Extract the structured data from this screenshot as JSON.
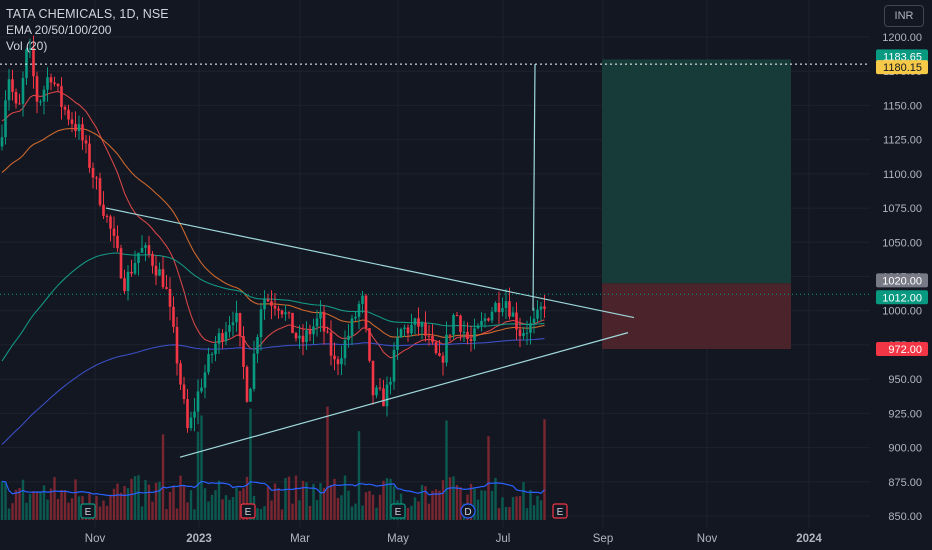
{
  "header": {
    "title": "TATA CHEMICALS, 1D, NSE",
    "indicator_ema": "EMA 20/50/100/200",
    "indicator_vol": "Vol (20)",
    "currency": "INR"
  },
  "colors": {
    "background": "#131722",
    "grid": "#1e222d",
    "up": "#089981",
    "down": "#f23645",
    "trendline": "#9fd8dc",
    "ema20": "#e84a4a",
    "ema50": "#e0702d",
    "ema100": "#14a38c",
    "ema200": "#3f54d4",
    "volume_ma": "#2962ff",
    "target_zone": "#173b39",
    "stop_zone": "#4a232b"
  },
  "chart_data": {
    "type": "candlestick",
    "y_axis": {
      "ticks": [
        "1200.00",
        "1175.00",
        "1150.00",
        "1125.00",
        "1100.00",
        "1075.00",
        "1050.00",
        "1025.00",
        "1000.00",
        "975.00",
        "950.00",
        "925.00",
        "900.00",
        "875.00",
        "850.00"
      ],
      "range": [
        845,
        1205
      ]
    },
    "x_axis": {
      "ticks": [
        "Nov",
        "2023",
        "Mar",
        "May",
        "Jul",
        "Sep",
        "Nov",
        "2024"
      ]
    },
    "price_labels": [
      {
        "value": 1183.65,
        "text": "1183.65",
        "kind": "target"
      },
      {
        "value": 1180.15,
        "text": "1180.15",
        "kind": "high"
      },
      {
        "value": 1020.0,
        "text": "1020.00",
        "kind": "entry"
      },
      {
        "value": 1012.0,
        "text": "1012.00",
        "kind": "last"
      },
      {
        "value": 972.0,
        "text": "972.00",
        "kind": "stop"
      }
    ],
    "earnings_markers": [
      "E",
      "E",
      "E",
      "D",
      "E"
    ],
    "trendlines": [
      {
        "name": "upper",
        "from": [
          "Oct 2022",
          1075
        ],
        "to": [
          "Aug 2023",
          995
        ]
      },
      {
        "name": "lower",
        "from": [
          "Dec 2022",
          893
        ],
        "to": [
          "Aug 2023",
          984
        ]
      }
    ],
    "position": {
      "entry": 1020.0,
      "target": 1183.65,
      "stop": 972.0
    },
    "last_price": 1012.0,
    "spike_high": 1180.15
  }
}
